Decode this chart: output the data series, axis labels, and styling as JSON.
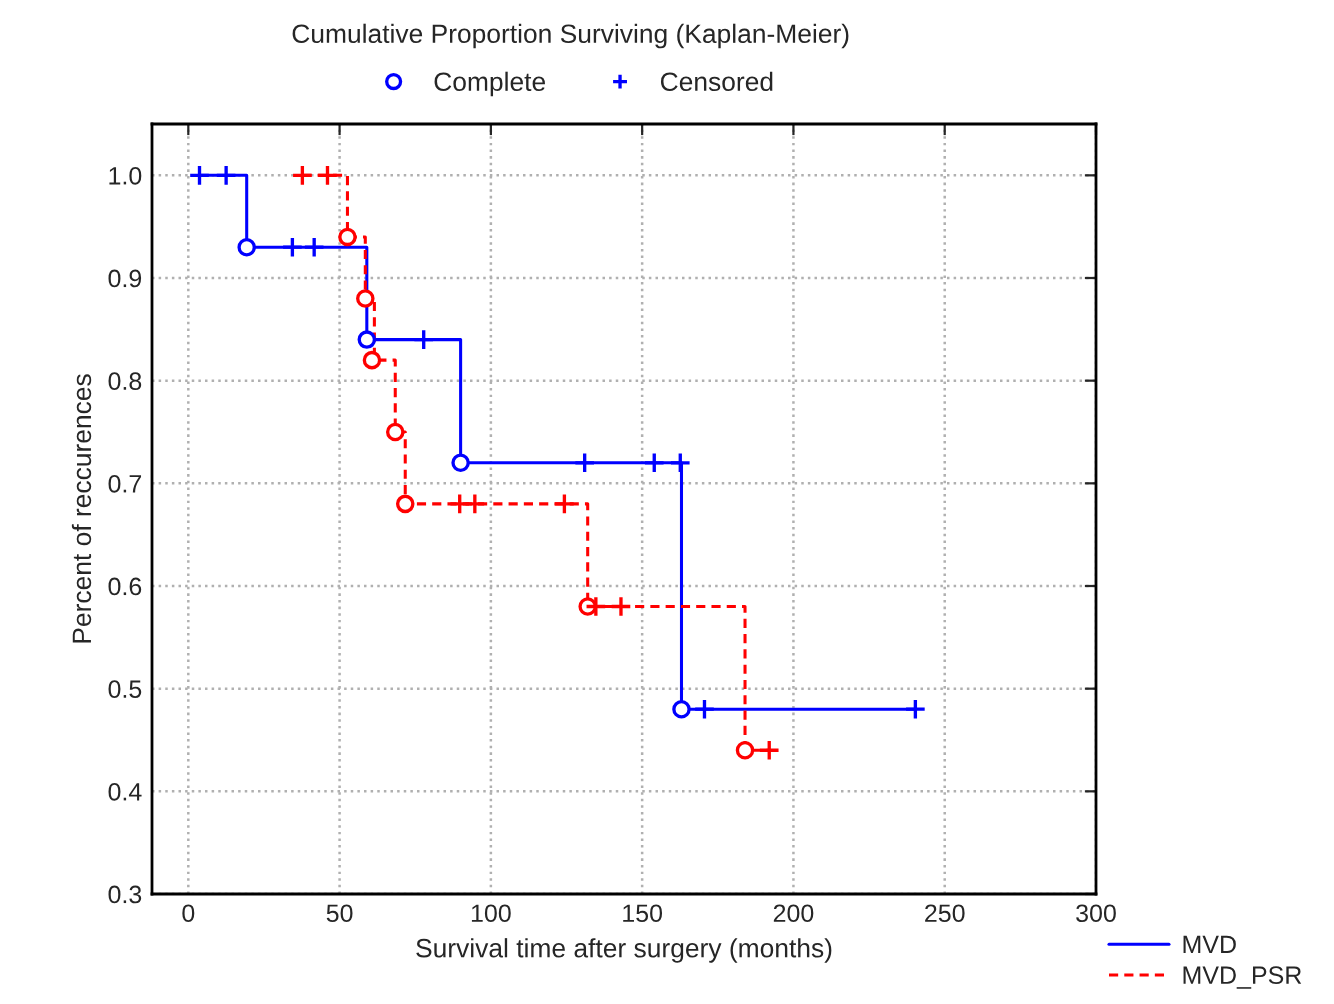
{
  "chart_data": {
    "type": "step",
    "title": "Cumulative Proportion Surviving (Kaplan-Meier)",
    "xlabel": "Survival time after surgery (months)",
    "ylabel": "Percent of reccurences",
    "series": [
      {
        "name": "MVD",
        "color": "#0000ff",
        "line_style": "solid",
        "x": [
          3.7,
          19.3,
          59,
          90,
          163,
          240.3
        ],
        "values": [
          1.0,
          0.93,
          0.84,
          0.72,
          0.48,
          0.48
        ]
      },
      {
        "name": "MVD_PSR",
        "color": "#ff0000",
        "line_style": "dashed",
        "x": [
          37.7,
          52.6,
          58.5,
          61.5,
          68.4,
          71.7,
          132,
          184,
          192
        ],
        "values": [
          1.0,
          0.94,
          0.88,
          0.82,
          0.75,
          0.68,
          0.58,
          0.44,
          0.44
        ]
      },
      {
        "name": "Complete",
        "type": "scatter",
        "marker": "circle",
        "color": "#0000ff",
        "x": [
          19.3,
          59,
          90,
          163
        ],
        "values": [
          0.93,
          0.84,
          0.72,
          0.48
        ]
      },
      {
        "name": "Censored",
        "type": "scatter",
        "marker": "cross",
        "color": "#0000ff",
        "x": [
          3.7,
          12.5,
          34.4,
          41.6,
          77.8,
          131,
          154,
          162.6,
          170.6,
          240.3
        ],
        "values": [
          1.0,
          1.0,
          0.93,
          0.93,
          0.84,
          0.72,
          0.72,
          0.72,
          0.48,
          0.48
        ]
      },
      {
        "type": "scatter",
        "marker": "circle",
        "color": "#ff0000",
        "x": [
          52.6,
          58.5,
          60.7,
          68.4,
          71.7,
          132,
          184
        ],
        "values": [
          0.94,
          0.88,
          0.82,
          0.75,
          0.68,
          0.58,
          0.44
        ]
      },
      {
        "type": "scatter",
        "marker": "cross",
        "color": "#ff0000",
        "x": [
          37.7,
          46,
          89.7,
          94.7,
          124.3,
          134.7,
          143,
          192
        ],
        "values": [
          1.0,
          1.0,
          0.68,
          0.68,
          0.68,
          0.58,
          0.58,
          0.44
        ]
      }
    ],
    "xlim": [
      -12,
      300
    ],
    "xticks": [
      0,
      50,
      100,
      150,
      200,
      250,
      300
    ],
    "ylim": [
      0.3,
      1.05
    ],
    "yticks": [
      {
        "value": 0.3,
        "label": "0.3"
      },
      {
        "value": 0.4,
        "label": "0.4"
      },
      {
        "value": 0.5,
        "label": "0.5"
      },
      {
        "value": 0.6,
        "label": "0.6"
      },
      {
        "value": 0.7,
        "label": "0.7"
      },
      {
        "value": 0.8,
        "label": "0.8"
      },
      {
        "value": 0.9,
        "label": "0.9"
      },
      {
        "value": 1.0,
        "label": "1.0"
      }
    ],
    "grid": true,
    "legend": "bottom right"
  }
}
